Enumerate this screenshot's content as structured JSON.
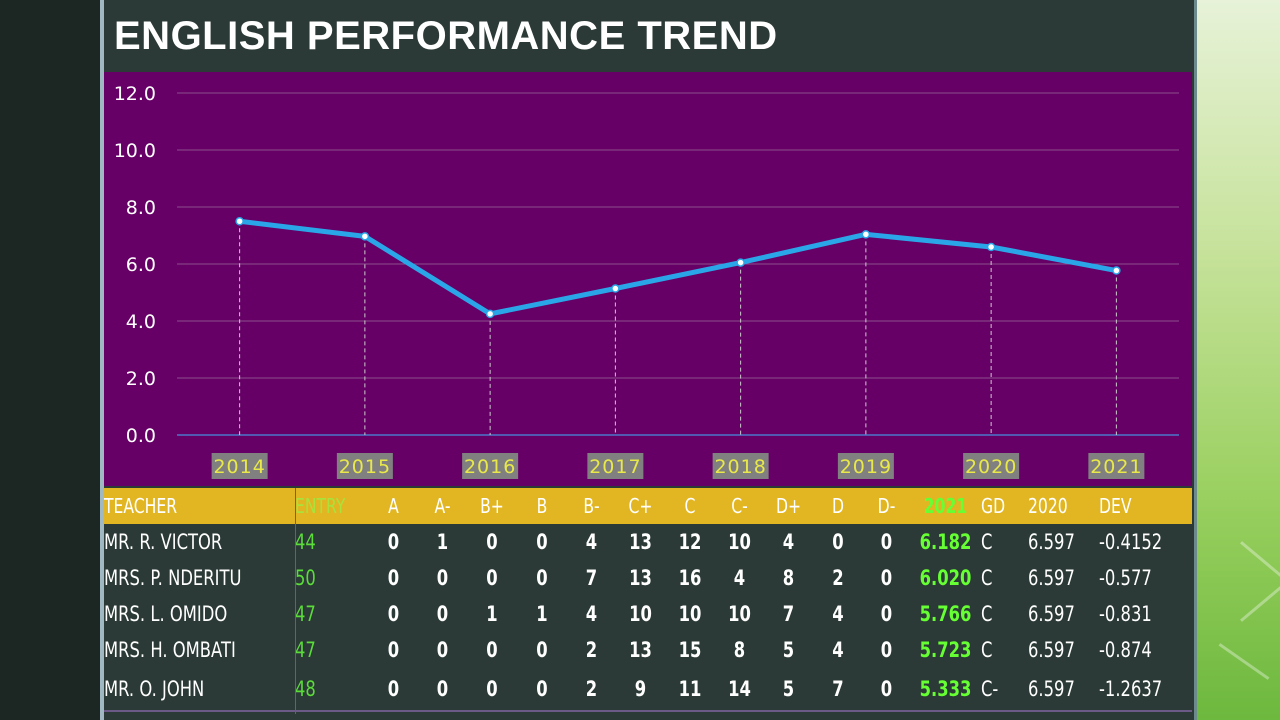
{
  "title": "ENGLISH PERFORMANCE TREND",
  "colors": {
    "plot_bg": "#660066",
    "line": "#2aa6e8",
    "year_label_bg": "#808080",
    "year_label_text": "#e8e84a",
    "header_bg": "#e2b622",
    "entry_text": "#5bdc3a",
    "mean_text": "#66ff33"
  },
  "chart_data": {
    "type": "line",
    "title": "",
    "xlabel": "",
    "ylabel": "",
    "x": [
      "2014",
      "2015",
      "2016",
      "2017",
      "2018",
      "2019",
      "2020",
      "2021"
    ],
    "series": [
      {
        "values": [
          7.5,
          6.97,
          4.25,
          5.14,
          6.05,
          7.04,
          6.597,
          5.77
        ]
      }
    ],
    "ylim": [
      0,
      12
    ],
    "yticks": [
      "0.0",
      "2.0",
      "4.0",
      "6.0",
      "8.0",
      "10.0",
      "12.0"
    ],
    "grid": true,
    "drop_lines": true
  },
  "table": {
    "headers": {
      "teacher": "TEACHER",
      "entry": "ENTRY",
      "grades": [
        "A",
        "A-",
        "B+",
        "B",
        "B-",
        "C+",
        "C",
        "C-",
        "D+",
        "D",
        "D-"
      ],
      "mean": "2021",
      "gd": "GD",
      "prev": "2020",
      "dev": "DEV"
    },
    "rows": [
      {
        "teacher": "MR. R. VICTOR",
        "entry": "44",
        "grades": [
          "0",
          "1",
          "0",
          "0",
          "4",
          "13",
          "12",
          "10",
          "4",
          "0",
          "0"
        ],
        "mean": "6.182",
        "gd": "C",
        "prev": "6.597",
        "dev": "-0.4152"
      },
      {
        "teacher": "MRS. P. NDERITU",
        "entry": "50",
        "grades": [
          "0",
          "0",
          "0",
          "0",
          "7",
          "13",
          "16",
          "4",
          "8",
          "2",
          "0"
        ],
        "mean": "6.020",
        "gd": "C",
        "prev": "6.597",
        "dev": "-0.577"
      },
      {
        "teacher": "MRS. L. OMIDO",
        "entry": "47",
        "grades": [
          "0",
          "0",
          "1",
          "1",
          "4",
          "10",
          "10",
          "10",
          "7",
          "4",
          "0"
        ],
        "mean": "5.766",
        "gd": "C",
        "prev": "6.597",
        "dev": "-0.831"
      },
      {
        "teacher": "MRS. H. OMBATI",
        "entry": "47",
        "grades": [
          "0",
          "0",
          "0",
          "0",
          "2",
          "13",
          "15",
          "8",
          "5",
          "4",
          "0"
        ],
        "mean": "5.723",
        "gd": "C",
        "prev": "6.597",
        "dev": "-0.874"
      },
      {
        "teacher": "MR. O. JOHN",
        "entry": "48",
        "grades": [
          "0",
          "0",
          "0",
          "0",
          "2",
          "9",
          "11",
          "14",
          "5",
          "7",
          "0"
        ],
        "mean": "5.333",
        "gd": "C-",
        "prev": "6.597",
        "dev": "-1.2637"
      }
    ]
  }
}
